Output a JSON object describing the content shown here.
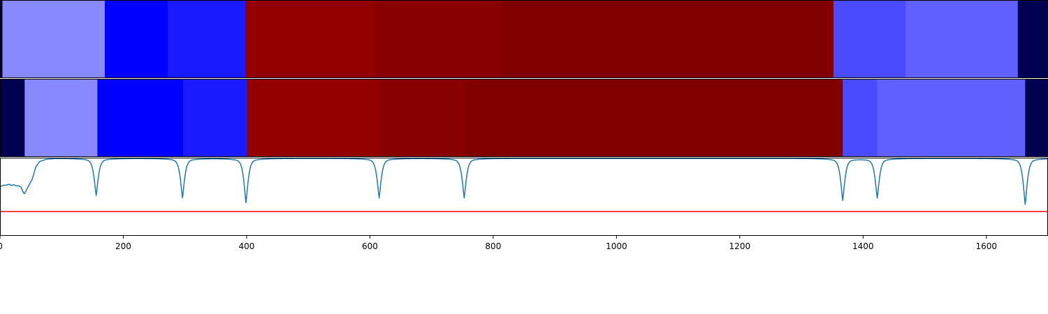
{
  "chart_data": [
    {
      "type": "heatmap",
      "panel": "top",
      "xlim": [
        0,
        1700
      ],
      "segments": [
        {
          "start": 0,
          "end": 4,
          "color": "#000050"
        },
        {
          "start": 4,
          "end": 170,
          "color": "#8888ff"
        },
        {
          "start": 170,
          "end": 272,
          "color": "#0000ff"
        },
        {
          "start": 272,
          "end": 398,
          "color": "#1a1aff"
        },
        {
          "start": 398,
          "end": 607,
          "color": "#920000"
        },
        {
          "start": 607,
          "end": 815,
          "color": "#880000"
        },
        {
          "start": 815,
          "end": 1352,
          "color": "#800000"
        },
        {
          "start": 1352,
          "end": 1469,
          "color": "#4a4aff"
        },
        {
          "start": 1469,
          "end": 1651,
          "color": "#6060ff"
        },
        {
          "start": 1651,
          "end": 1700,
          "color": "#000050"
        }
      ]
    },
    {
      "type": "heatmap",
      "panel": "middle",
      "xlim": [
        0,
        1700
      ],
      "segments": [
        {
          "start": 0,
          "end": 40,
          "color": "#000050"
        },
        {
          "start": 40,
          "end": 158,
          "color": "#8888ff"
        },
        {
          "start": 158,
          "end": 297,
          "color": "#0000ff"
        },
        {
          "start": 297,
          "end": 401,
          "color": "#1a1aff"
        },
        {
          "start": 401,
          "end": 615,
          "color": "#920000"
        },
        {
          "start": 615,
          "end": 754,
          "color": "#880000"
        },
        {
          "start": 754,
          "end": 1367,
          "color": "#800000"
        },
        {
          "start": 1367,
          "end": 1423,
          "color": "#4a4aff"
        },
        {
          "start": 1423,
          "end": 1663,
          "color": "#6060ff"
        },
        {
          "start": 1663,
          "end": 1700,
          "color": "#000050"
        }
      ]
    },
    {
      "type": "line",
      "panel": "bottom",
      "xlim": [
        0,
        1700
      ],
      "ylim": [
        0,
        1
      ],
      "threshold": 0.31,
      "threshold_color": "#ff0000",
      "line_color": "#1f77b4",
      "baseline": 0.99,
      "start_profile": [
        [
          0,
          0.63
        ],
        [
          5,
          0.645
        ],
        [
          10,
          0.65
        ],
        [
          15,
          0.66
        ],
        [
          18,
          0.645
        ],
        [
          22,
          0.655
        ],
        [
          26,
          0.64
        ],
        [
          30,
          0.64
        ],
        [
          34,
          0.625
        ],
        [
          38,
          0.55
        ],
        [
          40,
          0.54
        ],
        [
          45,
          0.62
        ],
        [
          52,
          0.72
        ],
        [
          58,
          0.88
        ],
        [
          64,
          0.95
        ],
        [
          75,
          0.98
        ],
        [
          90,
          0.99
        ]
      ],
      "dips": [
        {
          "x": 156,
          "depth": 0.46
        },
        {
          "x": 296,
          "depth": 0.49
        },
        {
          "x": 399,
          "depth": 0.55
        },
        {
          "x": 615,
          "depth": 0.49
        },
        {
          "x": 753,
          "depth": 0.49
        },
        {
          "x": 1367,
          "depth": 0.52
        },
        {
          "x": 1423,
          "depth": 0.49
        },
        {
          "x": 1663,
          "depth": 0.57
        }
      ],
      "xticks": [
        0,
        200,
        400,
        600,
        800,
        1000,
        1200,
        1400,
        1600
      ]
    }
  ]
}
